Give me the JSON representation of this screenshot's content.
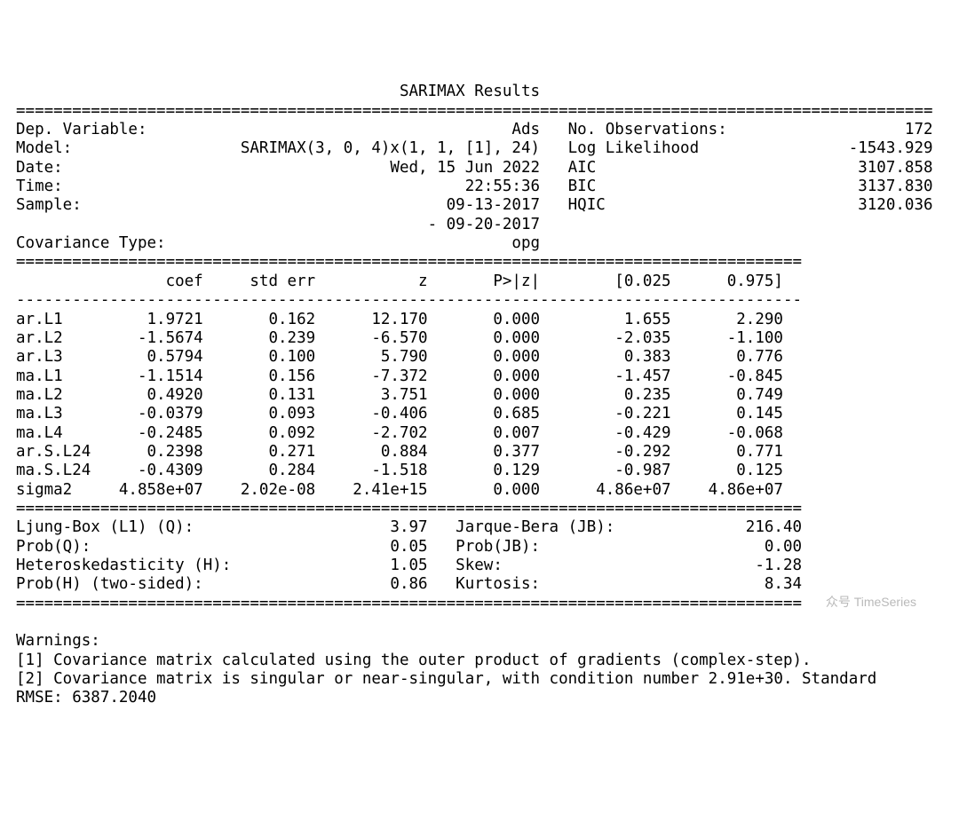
{
  "report": {
    "title": "SARIMAX Results",
    "width_full": 98,
    "width_coef": 84,
    "header_left": [
      [
        "Dep. Variable:",
        "Ads"
      ],
      [
        "Model:",
        "SARIMAX(3, 0, 4)x(1, 1, [1], 24)"
      ],
      [
        "Date:",
        "Wed, 15 Jun 2022"
      ],
      [
        "Time:",
        "22:55:36"
      ],
      [
        "Sample:",
        "09-13-2017"
      ],
      [
        "",
        "- 09-20-2017"
      ],
      [
        "Covariance Type:",
        "opg"
      ]
    ],
    "header_right": [
      [
        "No. Observations:",
        "172"
      ],
      [
        "Log Likelihood",
        "-1543.929"
      ],
      [
        "AIC",
        "3107.858"
      ],
      [
        "BIC",
        "3137.830"
      ],
      [
        "HQIC",
        "3120.036"
      ],
      [
        "",
        ""
      ],
      [
        "",
        ""
      ]
    ],
    "header_left_label_w": 19,
    "header_left_value_w": 37,
    "header_right_label_w": 22,
    "header_right_value_w": 17,
    "coef_columns": [
      "",
      "coef",
      "std err",
      "z",
      "P>|z|",
      "[0.025",
      "0.975]"
    ],
    "coef_col_widths": [
      10,
      10,
      12,
      12,
      12,
      14,
      12
    ],
    "coef_rows": [
      [
        "ar.L1",
        "1.9721",
        "0.162",
        "12.170",
        "0.000",
        "1.655",
        "2.290"
      ],
      [
        "ar.L2",
        "-1.5674",
        "0.239",
        "-6.570",
        "0.000",
        "-2.035",
        "-1.100"
      ],
      [
        "ar.L3",
        "0.5794",
        "0.100",
        "5.790",
        "0.000",
        "0.383",
        "0.776"
      ],
      [
        "ma.L1",
        "-1.1514",
        "0.156",
        "-7.372",
        "0.000",
        "-1.457",
        "-0.845"
      ],
      [
        "ma.L2",
        "0.4920",
        "0.131",
        "3.751",
        "0.000",
        "0.235",
        "0.749"
      ],
      [
        "ma.L3",
        "-0.0379",
        "0.093",
        "-0.406",
        "0.685",
        "-0.221",
        "0.145"
      ],
      [
        "ma.L4",
        "-0.2485",
        "0.092",
        "-2.702",
        "0.007",
        "-0.429",
        "-0.068"
      ],
      [
        "ar.S.L24",
        "0.2398",
        "0.271",
        "0.884",
        "0.377",
        "-0.292",
        "0.771"
      ],
      [
        "ma.S.L24",
        "-0.4309",
        "0.284",
        "-1.518",
        "0.129",
        "-0.987",
        "0.125"
      ],
      [
        "sigma2",
        "4.858e+07",
        "2.02e-08",
        "2.41e+15",
        "0.000",
        "4.86e+07",
        "4.86e+07"
      ]
    ],
    "diag_left": [
      [
        "Ljung-Box (L1) (Q):",
        "3.97"
      ],
      [
        "Prob(Q):",
        "0.05"
      ],
      [
        "Heteroskedasticity (H):",
        "1.05"
      ],
      [
        "Prob(H) (two-sided):",
        "0.86"
      ]
    ],
    "diag_right": [
      [
        "Jarque-Bera (JB):",
        "216.40"
      ],
      [
        "Prob(JB):",
        "0.00"
      ],
      [
        "Skew:",
        "-1.28"
      ],
      [
        "Kurtosis:",
        "8.34"
      ]
    ],
    "diag_left_label_w": 34,
    "diag_left_value_w": 10,
    "diag_right_label_w": 20,
    "diag_right_value_w": 17,
    "warnings_title": "Warnings:",
    "warnings": [
      "[1] Covariance matrix calculated using the outer product of gradients (complex-step).",
      "[2] Covariance matrix is singular or near-singular, with condition number 2.91e+30. Standard"
    ],
    "rmse": "RMSE: 6387.2040"
  },
  "watermark": "众号 TimeSeries"
}
